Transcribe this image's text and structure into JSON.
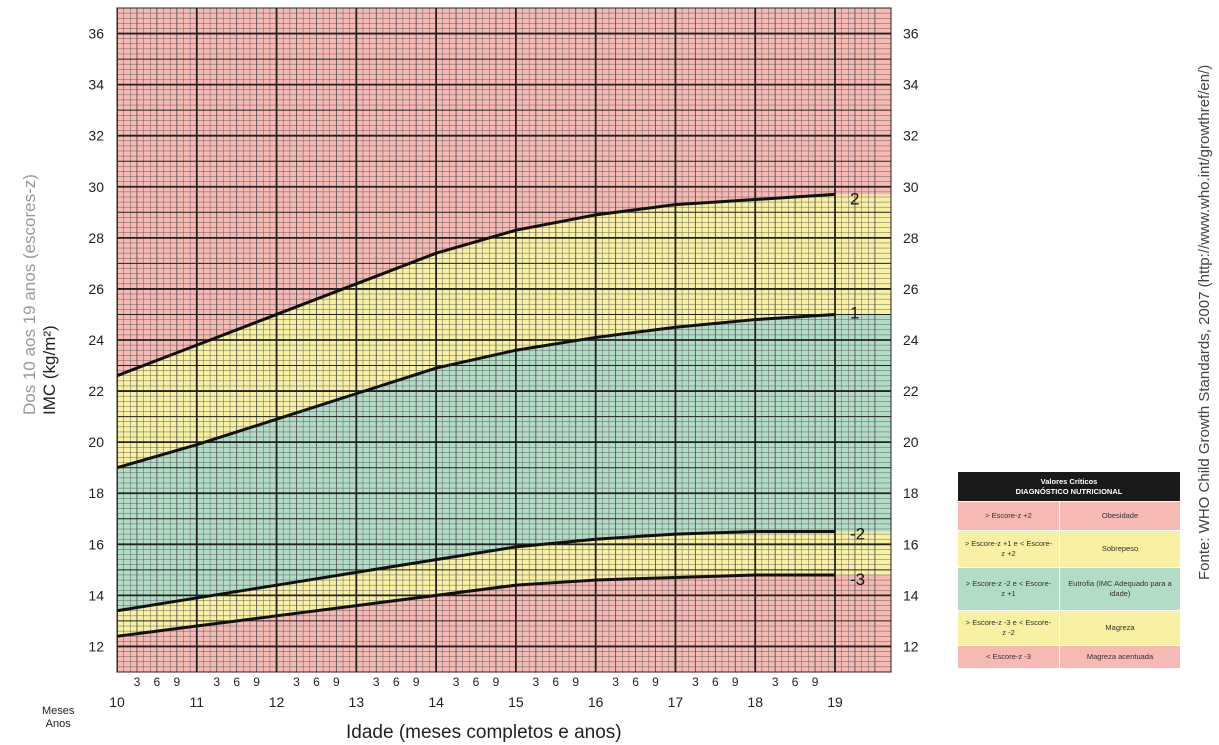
{
  "chart_data": {
    "type": "line",
    "ylabel_lines": [
      "Dos 10 aos 19 anos (escores-z)",
      "IMC (kg/m²)"
    ],
    "xlabel": "Idade (meses completos e anos)",
    "source": "Fonte: WHO Child Growth Standards, 2007 (http://www.who.int/growthref/en/)",
    "x_corner_labels": [
      "Meses",
      "Anos"
    ],
    "ylim": [
      11,
      37
    ],
    "xlim": [
      10,
      19.5
    ],
    "y_ticks": [
      12,
      14,
      16,
      18,
      20,
      22,
      24,
      26,
      28,
      30,
      32,
      34,
      36
    ],
    "x_year_ticks": [
      10,
      11,
      12,
      13,
      14,
      15,
      16,
      17,
      18,
      19
    ],
    "x_month_tick_labels": [
      "3",
      "6",
      "9"
    ],
    "grid": true,
    "x": [
      10,
      11,
      12,
      13,
      14,
      15,
      16,
      17,
      18,
      19
    ],
    "series": [
      {
        "name": "2",
        "values": [
          22.6,
          23.8,
          25.0,
          26.2,
          27.4,
          28.3,
          28.9,
          29.3,
          29.5,
          29.7
        ]
      },
      {
        "name": "1",
        "values": [
          19.0,
          19.9,
          20.9,
          21.9,
          22.9,
          23.6,
          24.1,
          24.5,
          24.8,
          25.0
        ]
      },
      {
        "name": "-2",
        "values": [
          13.4,
          13.9,
          14.4,
          14.9,
          15.4,
          15.9,
          16.2,
          16.4,
          16.5,
          16.5
        ]
      },
      {
        "name": "-3",
        "values": [
          12.4,
          12.8,
          13.2,
          13.6,
          14.0,
          14.4,
          14.6,
          14.7,
          14.8,
          14.8
        ]
      }
    ],
    "zone_colors": {
      "obesidade": "#f6b9b4",
      "sobrepeso": "#f8f0a2",
      "eutrofia": "#b3dcc7",
      "magreza": "#f8f0a2",
      "magreza_acentuada": "#f6b9b4"
    },
    "legend": {
      "title": "Valores Críticos",
      "subtitle": "DIAGNÓSTICO NUTRICIONAL",
      "placement": "bottom-right, outside plot",
      "rows": [
        {
          "criterion": "> Escore-z +2",
          "diagnosis": "Obesidade",
          "color": "#f6b9b4"
        },
        {
          "criterion": "> Escore-z +1 e < Escore-z +2",
          "diagnosis": "Sobrepeso",
          "color": "#f8f0a2"
        },
        {
          "criterion": "> Escore-z -2 e < Escore-z +1",
          "diagnosis": "Eutrofia (IMC Adequado para a idade)",
          "color": "#b3dcc7"
        },
        {
          "criterion": "> Escore-z -3 e < Escore-z -2",
          "diagnosis": "Magreza",
          "color": "#f8f0a2"
        },
        {
          "criterion": "< Escore-z -3",
          "diagnosis": "Magreza acentuada",
          "color": "#f6b9b4"
        }
      ]
    }
  }
}
